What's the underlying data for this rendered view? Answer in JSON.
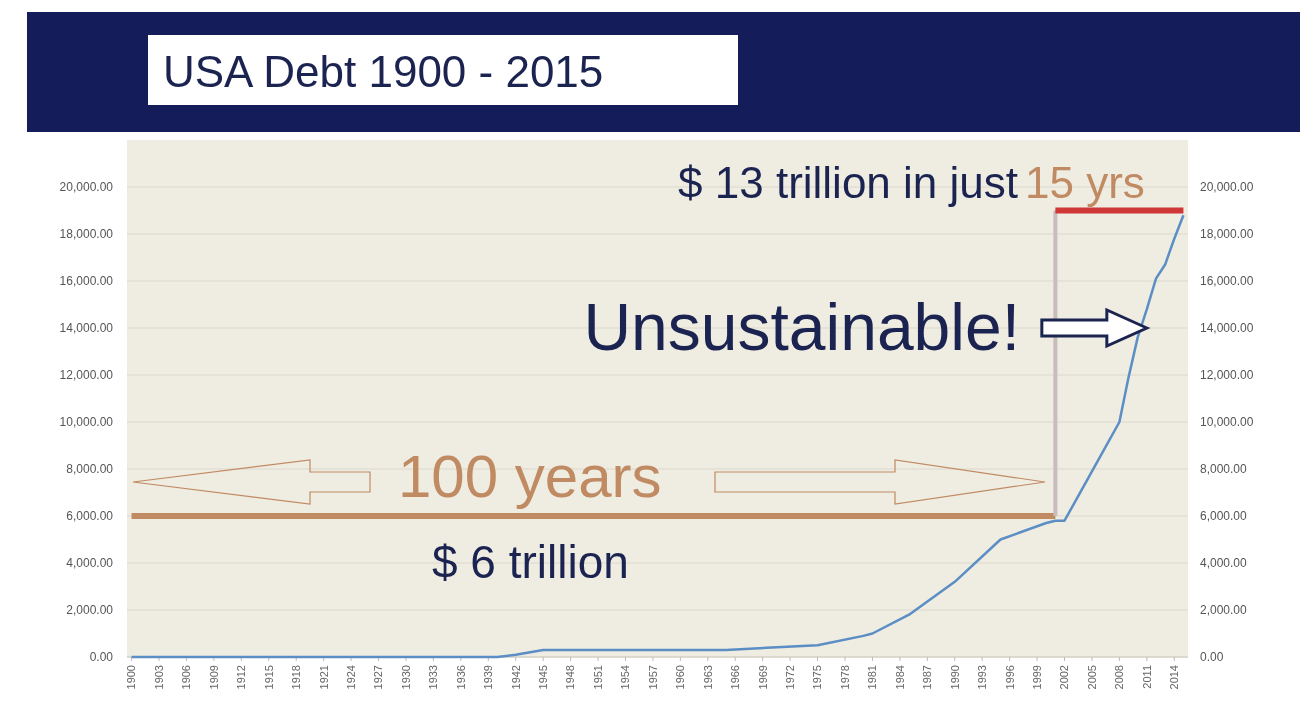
{
  "chart_data": {
    "type": "line",
    "title": "USA Debt 1900 - 2015",
    "xlim": [
      1899.5,
      2015.5
    ],
    "xticks": [
      1900,
      1903,
      1906,
      1909,
      1912,
      1915,
      1918,
      1921,
      1924,
      1927,
      1930,
      1933,
      1936,
      1939,
      1942,
      1945,
      1948,
      1951,
      1954,
      1957,
      1960,
      1963,
      1966,
      1969,
      1972,
      1975,
      1978,
      1981,
      1984,
      1987,
      1990,
      1993,
      1996,
      1999,
      2002,
      2005,
      2008,
      2011,
      2014
    ],
    "ylim": [
      0,
      22000
    ],
    "yticks": [
      {
        "value": 0,
        "label": "0.00"
      },
      {
        "value": 2000,
        "label": "2,000.00"
      },
      {
        "value": 4000,
        "label": "4,000.00"
      },
      {
        "value": 6000,
        "label": "6,000.00"
      },
      {
        "value": 8000,
        "label": "8,000.00"
      },
      {
        "value": 10000,
        "label": "10,000.00"
      },
      {
        "value": 12000,
        "label": "12,000.00"
      },
      {
        "value": 14000,
        "label": "14,000.00"
      },
      {
        "value": 16000,
        "label": "16,000.00"
      },
      {
        "value": 18000,
        "label": "18,000.00"
      },
      {
        "value": 20000,
        "label": "20,000.00"
      }
    ],
    "y2lim": [
      0,
      22000
    ],
    "y2ticks": [
      {
        "value": 0,
        "label": "0.00"
      },
      {
        "value": 2000,
        "label": "2,000.00"
      },
      {
        "value": 4000,
        "label": "4,000.00"
      },
      {
        "value": 6000,
        "label": "6,000.00"
      },
      {
        "value": 8000,
        "label": "8,000.00"
      },
      {
        "value": 10000,
        "label": "10,000.00"
      },
      {
        "value": 12000,
        "label": "12,000.00"
      },
      {
        "value": 14000,
        "label": "14,000.00"
      },
      {
        "value": 16000,
        "label": "16,000.00"
      },
      {
        "value": 18000,
        "label": "18,000.00"
      },
      {
        "value": 20000,
        "label": "20,000.00"
      }
    ],
    "grid": "y",
    "series": [
      {
        "color": "#5b8ec4",
        "x": [
          1900,
          1916,
          1919,
          1930,
          1935,
          1940,
          1942,
          1945,
          1950,
          1960,
          1965,
          1970,
          1975,
          1980,
          1981,
          1985,
          1990,
          1995,
          2000,
          2001,
          2002,
          2005,
          2008,
          2009,
          2010,
          2011,
          2012,
          2013,
          2014,
          2015
        ],
        "values": [
          0,
          0,
          0,
          0,
          0,
          0,
          100,
          300,
          300,
          300,
          300,
          400,
          500,
          900,
          1000,
          1800,
          3200,
          5000,
          5700,
          5800,
          5800,
          7900,
          10000,
          11900,
          13600,
          14800,
          16100,
          16700,
          17800,
          18800
        ]
      },
      {
        "color": "#c08a62",
        "x": [
          1900,
          2001
        ],
        "values": [
          6000,
          6000
        ]
      },
      {
        "color": "#c8bcbe",
        "x": [
          2001,
          2001
        ],
        "values": [
          6000,
          19000
        ]
      },
      {
        "color": "#d03838",
        "x": [
          2001,
          2015
        ],
        "values": [
          19000,
          19000
        ]
      }
    ],
    "annotations": [
      "$ 13 trillion in just",
      "15 yrs",
      {
        "text": "Unsustainable!",
        "x": 2011,
        "y": 14000
      },
      "100 years",
      "$ 6 trillion"
    ]
  }
}
